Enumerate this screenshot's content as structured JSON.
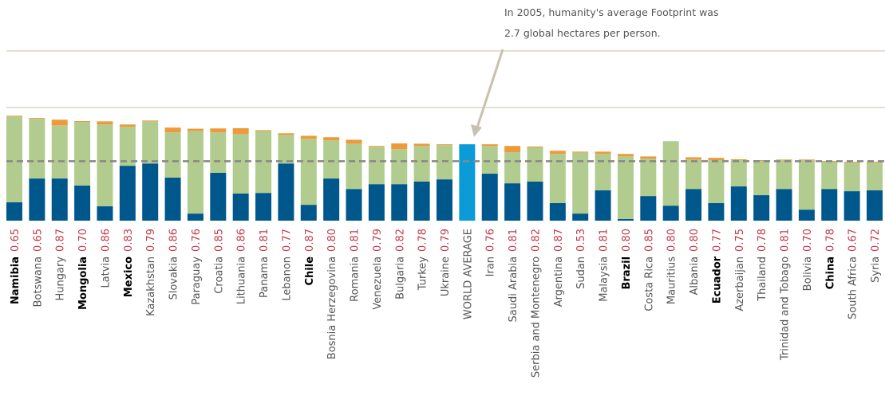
{
  "chart_data": {
    "type": "stacked_bar",
    "annotation": [
      "In 2005, humanity's average Footprint was",
      "2.7 global hectares per person."
    ],
    "categories": [
      "Namibia",
      "Botswana",
      "Hungary",
      "Mongolia",
      "Latvia",
      "Mexico",
      "Kazakhstan",
      "Slovakia",
      "Paraguay",
      "Croatia",
      "Lithuania",
      "Panama",
      "Lebanon",
      "Chile",
      "Bosnia Herzegovina",
      "Romania",
      "Venezuela",
      "Bulgaria",
      "Turkey",
      "Ukraine",
      "WORLD AVERAGE",
      "Iran",
      "Saudi Arabia",
      "Serbia and Montenegro",
      "Argentina",
      "Sudan",
      "Malaysia",
      "Brazil",
      "Costa Rica",
      "Mauritius",
      "Albania",
      "Ecuador",
      "Azerbaijan",
      "Thailand",
      "Trinidad and Tobago",
      "Bolivia",
      "China",
      "South Africa",
      "Syria"
    ],
    "bold": [
      true,
      false,
      false,
      true,
      false,
      true,
      false,
      false,
      false,
      false,
      false,
      false,
      false,
      true,
      false,
      false,
      false,
      false,
      false,
      false,
      false,
      false,
      false,
      false,
      false,
      false,
      false,
      true,
      false,
      false,
      false,
      true,
      false,
      false,
      false,
      false,
      true,
      false,
      false
    ],
    "hdi": {
      "color": "#c0394b",
      "values": [
        0.65,
        0.65,
        0.87,
        0.7,
        0.86,
        0.83,
        0.79,
        0.86,
        0.76,
        0.85,
        0.86,
        0.81,
        0.77,
        0.87,
        0.8,
        0.81,
        0.79,
        0.82,
        0.78,
        0.79,
        null,
        0.76,
        0.81,
        0.82,
        0.87,
        0.53,
        0.81,
        0.8,
        0.85,
        0.8,
        0.8,
        0.77,
        0.75,
        0.78,
        0.81,
        0.7,
        0.78,
        0.67,
        0.72
      ],
      "value_labels": [
        "0.65",
        "0.65",
        "0.87",
        "0.70",
        "0.86",
        "0.83",
        "0.79",
        "0.86",
        "0.76",
        "0.85",
        "0.86",
        "0.81",
        "0.77",
        "0.87",
        "0.80",
        "0.81",
        "0.79",
        "0.82",
        "0.78",
        "0.79",
        null,
        "0.76",
        "0.81",
        "0.82",
        "0.87",
        "0.53",
        "0.81",
        "0.80",
        "0.85",
        "0.80",
        "0.80",
        "0.77",
        "0.75",
        "0.78",
        "0.81",
        "0.70",
        "0.78",
        "0.67",
        "0.72"
      ]
    },
    "series": [
      {
        "color": "#00578c",
        "values": [
          0.65,
          1.49,
          1.49,
          1.24,
          0.51,
          1.94,
          2.02,
          1.52,
          0.25,
          1.69,
          0.96,
          0.98,
          2.02,
          0.56,
          1.49,
          1.12,
          1.29,
          1.29,
          1.38,
          1.46,
          null,
          1.66,
          1.32,
          1.38,
          0.62,
          0.25,
          1.07,
          0.06,
          0.87,
          0.53,
          1.12,
          0.62,
          1.21,
          0.9,
          1.12,
          0.39,
          1.12,
          1.04,
          1.07
        ]
      },
      {
        "color": "#b1cc8e",
        "values": [
          3.03,
          2.11,
          1.88,
          2.25,
          2.89,
          1.38,
          1.49,
          1.6,
          2.92,
          1.43,
          2.11,
          2.19,
          1.01,
          2.33,
          1.35,
          1.6,
          1.32,
          1.24,
          1.26,
          1.21,
          null,
          0.98,
          1.1,
          1.21,
          1.74,
          2.16,
          1.29,
          2.22,
          1.32,
          2.28,
          1.04,
          1.52,
          0.93,
          1.21,
          1.01,
          1.74,
          0.96,
          1.01,
          0.98
        ]
      },
      {
        "color": "#ef9a3a",
        "values": [
          0.03,
          0.03,
          0.2,
          0.03,
          0.11,
          0.08,
          0.03,
          0.17,
          0.08,
          0.14,
          0.2,
          0.03,
          0.06,
          0.11,
          0.11,
          0.14,
          0.03,
          0.2,
          0.08,
          0.03,
          null,
          0.06,
          0.22,
          0.03,
          0.11,
          0.03,
          0.08,
          0.08,
          0.08,
          0,
          0.08,
          0.08,
          0.03,
          0.03,
          0.03,
          0.03,
          0.03,
          0.03,
          0.03
        ]
      },
      {
        "color": "#0b9bd7",
        "values": [
          null,
          null,
          null,
          null,
          null,
          null,
          null,
          null,
          null,
          null,
          null,
          null,
          null,
          null,
          null,
          null,
          null,
          null,
          null,
          null,
          2.7,
          null,
          null,
          null,
          null,
          null,
          null,
          null,
          null,
          null,
          null,
          null,
          null,
          null,
          null,
          null,
          null,
          null,
          null
        ]
      }
    ],
    "reference_line": 2.1,
    "ylim": [
      0,
      7.8
    ],
    "yticks": [
      4,
      6
    ],
    "grid": true
  }
}
